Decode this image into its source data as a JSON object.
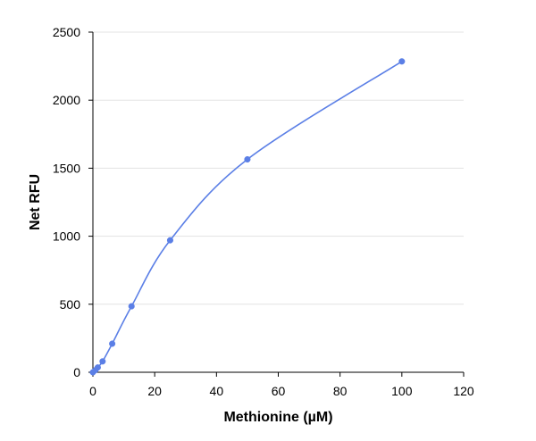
{
  "chart_data": {
    "type": "line",
    "title": "",
    "xlabel": "Methionine (µM)",
    "ylabel": "Net RFU",
    "xlim": [
      0,
      120
    ],
    "ylim": [
      0,
      2500
    ],
    "x_ticks": [
      0,
      20,
      40,
      60,
      80,
      100,
      120
    ],
    "y_ticks": [
      0,
      500,
      1000,
      1500,
      2000,
      2500
    ],
    "grid": "horizontal",
    "legend": "none",
    "colors": {
      "series": "#5b7fe6",
      "marker": "#5b7fe6",
      "grid": "#e3e3e3",
      "axis": "#000000"
    },
    "series": [
      {
        "smooth": true,
        "marker": "circle",
        "x": [
          0,
          0.78,
          1.56,
          3.13,
          6.25,
          12.5,
          25,
          50,
          100
        ],
        "y": [
          0,
          15,
          35,
          80,
          210,
          485,
          970,
          1565,
          2285
        ]
      }
    ]
  }
}
